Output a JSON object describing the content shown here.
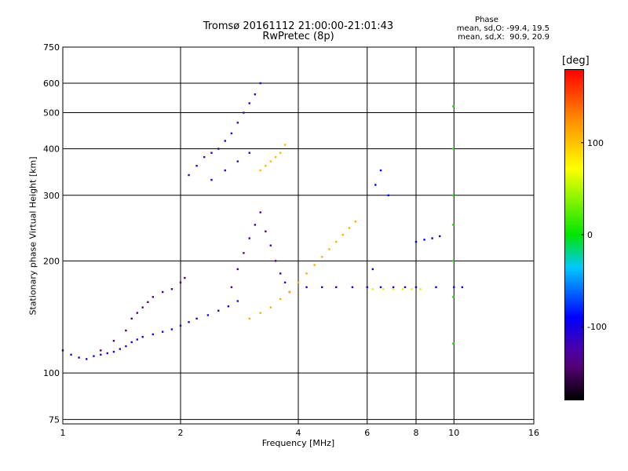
{
  "chart_data": {
    "type": "scatter",
    "title": "Tromsø 20161112 21:00:00-21:01:43",
    "subtitle": "RwPretec (8p)",
    "xlabel": "Frequency [MHz]",
    "ylabel": "Stationary phase Virtual Height [km]",
    "xscale": "log",
    "yscale": "log",
    "xlim": [
      1,
      16
    ],
    "ylim": [
      73,
      750
    ],
    "xticks": [
      1,
      2,
      4,
      6,
      8,
      10,
      16
    ],
    "yticks": [
      75,
      100,
      200,
      300,
      400,
      500,
      600,
      750
    ],
    "grid": true,
    "phase_stats": {
      "title": "Phase",
      "line1": "mean, sd,O: -99.4, 19.5",
      "line2": "mean, sd,X:  90.9, 20.9"
    },
    "colorbar": {
      "label": "[deg]",
      "range": [
        -180,
        180
      ],
      "ticks": [
        100,
        0,
        -100
      ],
      "tick_labels": [
        "100",
        "0",
        "-100"
      ]
    },
    "clusters": [
      {
        "name": "o-trace-low",
        "phase": -110,
        "points": [
          [
            1.0,
            115
          ],
          [
            1.05,
            112
          ],
          [
            1.1,
            110
          ],
          [
            1.15,
            109
          ],
          [
            1.2,
            111
          ],
          [
            1.25,
            112
          ],
          [
            1.3,
            113
          ],
          [
            1.35,
            114
          ],
          [
            1.4,
            116
          ],
          [
            1.45,
            118
          ],
          [
            1.5,
            121
          ],
          [
            1.55,
            123
          ],
          [
            1.6,
            125
          ],
          [
            1.7,
            127
          ],
          [
            1.8,
            129
          ],
          [
            1.9,
            131
          ],
          [
            2.0,
            134
          ],
          [
            2.1,
            137
          ],
          [
            2.2,
            140
          ],
          [
            2.35,
            143
          ],
          [
            2.5,
            147
          ],
          [
            2.65,
            151
          ],
          [
            2.8,
            156
          ]
        ]
      },
      {
        "name": "purple-low",
        "phase": -145,
        "points": [
          [
            1.5,
            140
          ],
          [
            1.55,
            145
          ],
          [
            1.6,
            150
          ],
          [
            1.65,
            155
          ],
          [
            1.7,
            160
          ],
          [
            1.8,
            165
          ],
          [
            1.9,
            168
          ],
          [
            2.0,
            175
          ],
          [
            2.05,
            180
          ],
          [
            1.45,
            130
          ],
          [
            1.35,
            122
          ],
          [
            1.25,
            115
          ]
        ]
      },
      {
        "name": "f-region-upper",
        "phase": -115,
        "points": [
          [
            2.1,
            340
          ],
          [
            2.2,
            360
          ],
          [
            2.3,
            380
          ],
          [
            2.4,
            390
          ],
          [
            2.5,
            400
          ],
          [
            2.6,
            420
          ],
          [
            2.7,
            440
          ],
          [
            2.8,
            470
          ],
          [
            2.9,
            500
          ],
          [
            3.0,
            530
          ],
          [
            3.1,
            560
          ],
          [
            3.2,
            600
          ],
          [
            2.4,
            330
          ],
          [
            2.6,
            350
          ],
          [
            2.8,
            370
          ],
          [
            3.0,
            390
          ]
        ]
      },
      {
        "name": "f-region-mid",
        "phase": -120,
        "points": [
          [
            2.7,
            170
          ],
          [
            2.8,
            190
          ],
          [
            2.9,
            210
          ],
          [
            3.0,
            230
          ],
          [
            3.1,
            250
          ],
          [
            3.2,
            270
          ],
          [
            3.3,
            240
          ],
          [
            3.4,
            220
          ],
          [
            3.5,
            200
          ],
          [
            3.6,
            185
          ],
          [
            3.7,
            175
          ],
          [
            3.8,
            165
          ]
        ]
      },
      {
        "name": "x-trace-yellow",
        "phase": 110,
        "points": [
          [
            3.0,
            140
          ],
          [
            3.2,
            145
          ],
          [
            3.4,
            150
          ],
          [
            3.6,
            158
          ],
          [
            3.8,
            165
          ],
          [
            4.0,
            175
          ],
          [
            4.2,
            185
          ],
          [
            4.4,
            195
          ],
          [
            4.6,
            205
          ],
          [
            4.8,
            215
          ],
          [
            5.0,
            225
          ],
          [
            5.2,
            235
          ],
          [
            5.4,
            245
          ],
          [
            5.6,
            255
          ]
        ]
      },
      {
        "name": "upper-x-yellow",
        "phase": 105,
        "points": [
          [
            3.2,
            350
          ],
          [
            3.4,
            370
          ],
          [
            3.6,
            390
          ],
          [
            3.7,
            410
          ],
          [
            3.3,
            360
          ],
          [
            3.5,
            380
          ]
        ]
      },
      {
        "name": "sporadic-e-line",
        "phase": -100,
        "points": [
          [
            4.2,
            170
          ],
          [
            4.6,
            170
          ],
          [
            5.0,
            170
          ],
          [
            5.5,
            170
          ],
          [
            6.0,
            170
          ],
          [
            6.5,
            170
          ],
          [
            7.0,
            170
          ],
          [
            7.5,
            170
          ],
          [
            8.0,
            170
          ],
          [
            9.0,
            170
          ],
          [
            10.0,
            170
          ],
          [
            10.5,
            170
          ]
        ]
      },
      {
        "name": "sporadic-e-green",
        "phase": 60,
        "points": [
          [
            6.2,
            168
          ],
          [
            6.6,
            168
          ],
          [
            7.0,
            168
          ],
          [
            7.4,
            168
          ],
          [
            7.8,
            168
          ],
          [
            8.2,
            168
          ]
        ]
      },
      {
        "name": "high-freq-blue",
        "phase": -90,
        "points": [
          [
            8.0,
            225
          ],
          [
            8.4,
            228
          ],
          [
            8.8,
            230
          ],
          [
            9.2,
            233
          ],
          [
            6.3,
            320
          ],
          [
            6.5,
            350
          ],
          [
            6.8,
            300
          ],
          [
            6.2,
            190
          ]
        ]
      },
      {
        "name": "vertical-10mhz",
        "phase": 10,
        "points": [
          [
            9.95,
            120
          ],
          [
            9.95,
            160
          ],
          [
            9.95,
            200
          ],
          [
            9.95,
            250
          ],
          [
            9.95,
            300
          ],
          [
            9.95,
            400
          ],
          [
            9.95,
            520
          ]
        ]
      }
    ]
  }
}
